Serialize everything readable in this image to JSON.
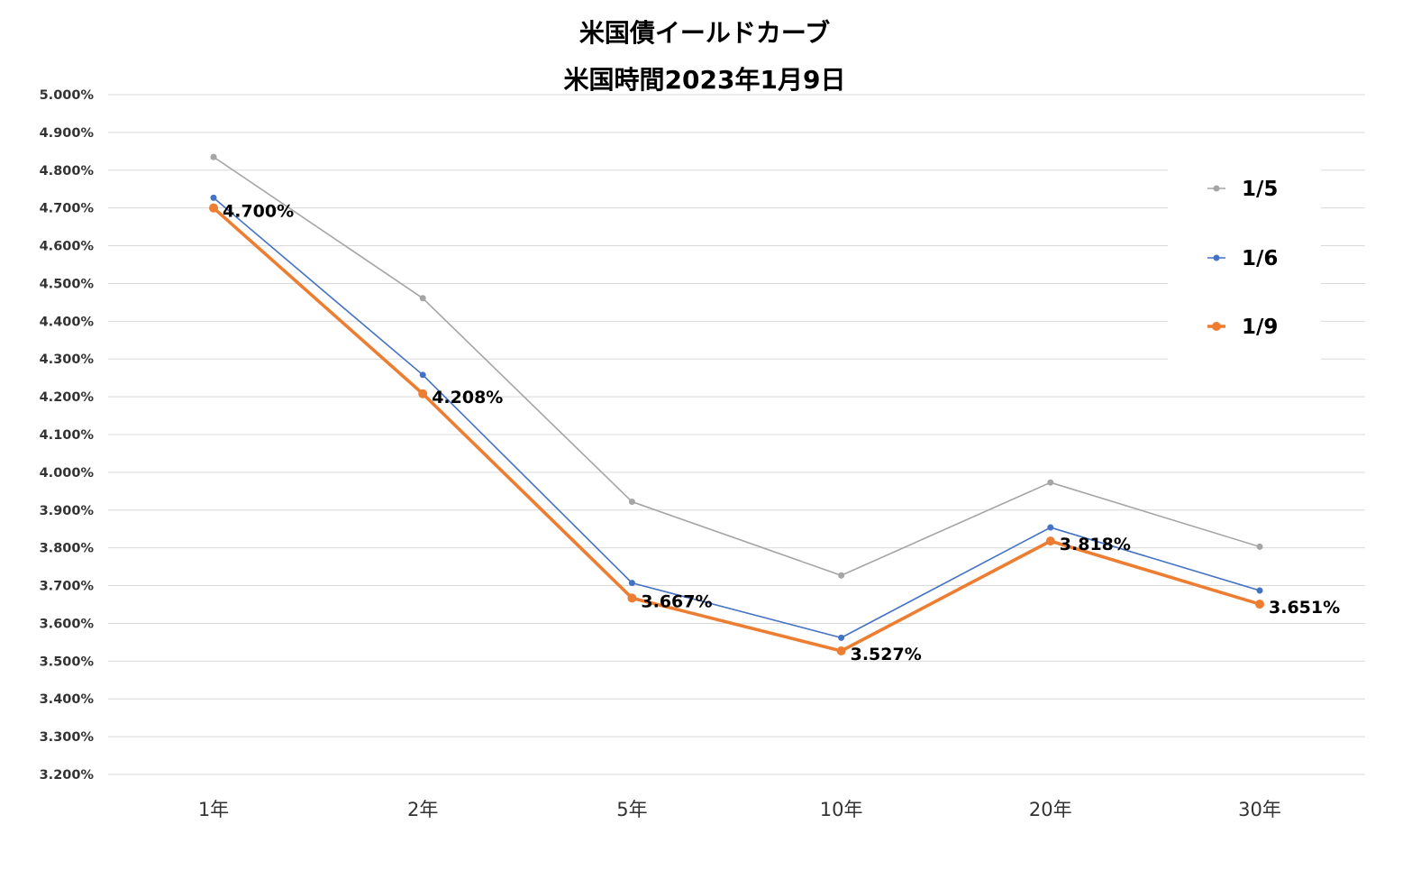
{
  "chart_data": {
    "type": "line",
    "title": "米国債イールドカーブ",
    "subtitle": "米国時間2023年1月9日",
    "categories": [
      "1年",
      "2年",
      "5年",
      "10年",
      "20年",
      "30年"
    ],
    "ylim": [
      3.2,
      5.0
    ],
    "yticks": [
      "3.200%",
      "3.300%",
      "3.400%",
      "3.500%",
      "3.600%",
      "3.700%",
      "3.800%",
      "3.900%",
      "4.000%",
      "4.100%",
      "4.200%",
      "4.300%",
      "4.400%",
      "4.500%",
      "4.600%",
      "4.700%",
      "4.800%",
      "4.900%",
      "5.000%"
    ],
    "grid": true,
    "legend_position": "right",
    "series": [
      {
        "name": "1/5",
        "color": "#A5A5A5",
        "values": [
          4.835,
          4.461,
          3.922,
          3.727,
          3.973,
          3.803
        ]
      },
      {
        "name": "1/6",
        "color": "#4472C4",
        "values": [
          4.727,
          4.258,
          3.707,
          3.562,
          3.854,
          3.687
        ]
      },
      {
        "name": "1/9",
        "color": "#ED7D31",
        "values": [
          4.7,
          4.208,
          3.667,
          3.527,
          3.818,
          3.651
        ],
        "data_labels": [
          "4.700%",
          "4.208%",
          "3.667%",
          "3.527%",
          "3.818%",
          "3.651%"
        ]
      }
    ]
  }
}
